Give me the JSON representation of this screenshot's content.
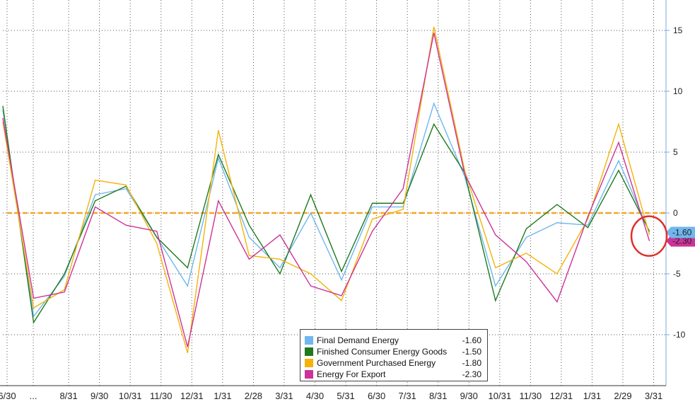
{
  "chart_data": {
    "type": "line",
    "categories": [
      "6/30",
      "…",
      "8/31",
      "9/30",
      "10/31",
      "11/30",
      "12/31",
      "1/31",
      "2/28",
      "3/31",
      "4/30",
      "5/31",
      "6/30",
      "7/31",
      "8/31",
      "9/30",
      "10/31",
      "11/30",
      "12/31",
      "1/31",
      "2/29",
      "3/31"
    ],
    "x_axis_labels": [
      "6/30",
      "...",
      "8/31",
      "9/30",
      "10/31",
      "11/30",
      "12/31",
      "1/31",
      "2/28",
      "3/31",
      "4/30",
      "5/31",
      "6/30",
      "7/31",
      "8/31",
      "9/30",
      "10/31",
      "11/30",
      "12/31",
      "1/31",
      "2/29",
      "3/31"
    ],
    "x_index": [
      0,
      0.85,
      2,
      3,
      4,
      5,
      6,
      7,
      8,
      9,
      10,
      11,
      12,
      13,
      14,
      15,
      16,
      17,
      18,
      19,
      20,
      21
    ],
    "series": [
      {
        "name": "Final Demand Energy",
        "color": "#6fb7ee",
        "last": "-1.60",
        "points": [
          [
            0,
            8.5
          ],
          [
            1,
            -8.5
          ],
          [
            2,
            -5.2
          ],
          [
            3,
            1.5
          ],
          [
            4,
            2.0
          ],
          [
            5,
            -2.0
          ],
          [
            6,
            -6.0
          ],
          [
            7,
            4.5
          ],
          [
            8,
            -2.0
          ],
          [
            9,
            -4.5
          ],
          [
            10,
            0.0
          ],
          [
            11,
            -5.5
          ],
          [
            12,
            0.5
          ],
          [
            13,
            0.5
          ],
          [
            14,
            9.0
          ],
          [
            15,
            3.0
          ],
          [
            16,
            -6.0
          ],
          [
            17,
            -2.0
          ],
          [
            18,
            -0.8
          ],
          [
            19,
            -1.0
          ],
          [
            20,
            4.3
          ],
          [
            21,
            -1.6
          ]
        ]
      },
      {
        "name": "Finished Consumer Energy Goods",
        "color": "#1f7a1f",
        "last": "-1.50",
        "points": [
          [
            0,
            8.8
          ],
          [
            1,
            -9.0
          ],
          [
            2,
            -5.0
          ],
          [
            3,
            1.0
          ],
          [
            4,
            2.2
          ],
          [
            5,
            -2.0
          ],
          [
            6,
            -4.5
          ],
          [
            7,
            4.8
          ],
          [
            8,
            -1.0
          ],
          [
            9,
            -5.0
          ],
          [
            10,
            1.5
          ],
          [
            11,
            -4.8
          ],
          [
            12,
            0.8
          ],
          [
            13,
            0.8
          ],
          [
            14,
            7.3
          ],
          [
            15,
            3.3
          ],
          [
            16,
            -7.2
          ],
          [
            17,
            -1.3
          ],
          [
            18,
            0.7
          ],
          [
            19,
            -1.2
          ],
          [
            20,
            3.5
          ],
          [
            21,
            -1.5
          ]
        ]
      },
      {
        "name": "Government Purchased Energy",
        "color": "#f5b30a",
        "last": "-1.80",
        "points": [
          [
            0,
            7.5
          ],
          [
            1,
            -7.8
          ],
          [
            2,
            -6.3
          ],
          [
            3,
            2.7
          ],
          [
            4,
            2.3
          ],
          [
            5,
            -2.5
          ],
          [
            6,
            -11.5
          ],
          [
            7,
            6.8
          ],
          [
            8,
            -3.5
          ],
          [
            9,
            -3.8
          ],
          [
            10,
            -5.0
          ],
          [
            11,
            -7.2
          ],
          [
            12,
            -0.5
          ],
          [
            13,
            0.3
          ],
          [
            14,
            15.3
          ],
          [
            15,
            3.5
          ],
          [
            16,
            -4.5
          ],
          [
            17,
            -3.3
          ],
          [
            18,
            -5.0
          ],
          [
            19,
            -0.5
          ],
          [
            20,
            7.3
          ],
          [
            21,
            -1.8
          ]
        ]
      },
      {
        "name": "Energy For Export",
        "color": "#cc3399",
        "last": "-2.30",
        "points": [
          [
            0,
            7.8
          ],
          [
            1,
            -7.0
          ],
          [
            2,
            -6.5
          ],
          [
            3,
            0.5
          ],
          [
            4,
            -1.0
          ],
          [
            5,
            -1.5
          ],
          [
            6,
            -11.0
          ],
          [
            7,
            1.0
          ],
          [
            8,
            -3.8
          ],
          [
            9,
            -1.8
          ],
          [
            10,
            -6.0
          ],
          [
            11,
            -6.8
          ],
          [
            12,
            -1.5
          ],
          [
            13,
            2.0
          ],
          [
            14,
            14.8
          ],
          [
            15,
            3.2
          ],
          [
            16,
            -1.8
          ],
          [
            17,
            -4.0
          ],
          [
            18,
            -7.3
          ],
          [
            19,
            -0.3
          ],
          [
            20,
            5.8
          ],
          [
            21,
            -2.3
          ]
        ]
      }
    ],
    "y_ticks": [
      15,
      10,
      5,
      0,
      -5,
      -10
    ],
    "y_tick_labels": [
      "15",
      "10",
      "5",
      "0",
      "-5",
      "-10"
    ],
    "ylim": [
      -14,
      17
    ],
    "reference_line": {
      "value": 0,
      "color": "#f5a623"
    },
    "last_value_tags": [
      {
        "text": "-1.60",
        "value": -1.6,
        "color": "#6fb7ee"
      },
      {
        "text": "-2.30",
        "value": -2.3,
        "color": "#cc3399"
      }
    ],
    "highlight": {
      "type": "circle",
      "color": "#e0302a"
    },
    "grid": true,
    "legend_position": "bottom-center"
  }
}
